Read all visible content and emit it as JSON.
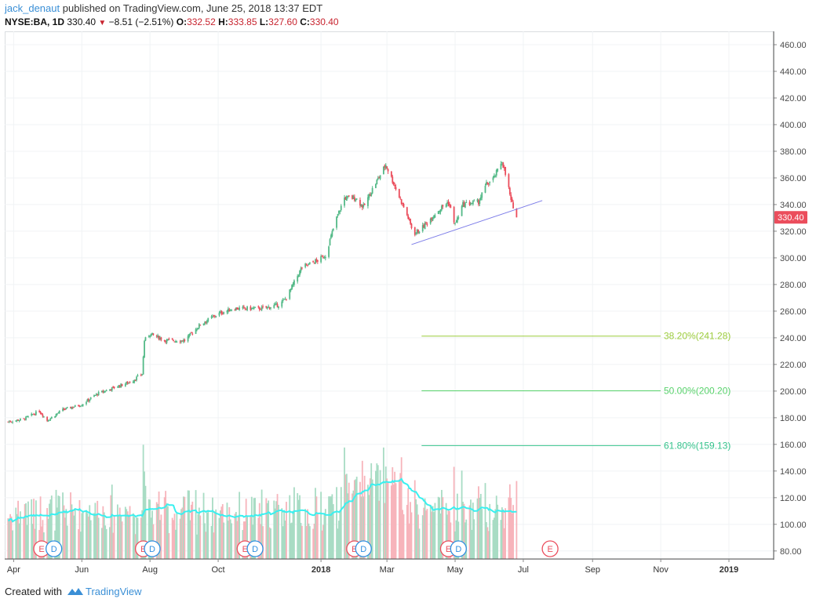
{
  "header": {
    "author": "jack_denaut",
    "published_text": " published on TradingView.com, June 25, 2018 13:37 EDT"
  },
  "ohlc": {
    "symbol": "NYSE:BA, 1D",
    "last": "330.40",
    "change": "−8.51 (−2.51%)",
    "o_label": "O:",
    "o": "332.52",
    "h_label": "H:",
    "h": "333.85",
    "l_label": "L:",
    "l": "327.60",
    "c_label": "C:",
    "c": "330.40"
  },
  "footer": {
    "created_with": "Created with",
    "brand": "TradingView"
  },
  "colors": {
    "up": "#53b987",
    "down": "#eb4d5c",
    "volume_up": "#a8dcc4",
    "volume_down": "#f7b4bb",
    "volume_ma": "#39f0f0",
    "trendline": "#7b7be8",
    "fib_382": "#9ccc3c",
    "fib_50": "#58d26b",
    "fib_618": "#35c38c",
    "price_tag": "#eb4d5c",
    "grid": "#f0f3f5"
  },
  "chart_data": {
    "type": "candlestick",
    "symbol": "NYSE:BA",
    "interval": "1D",
    "y_axis_ticks": [
      80,
      100,
      120,
      140,
      160,
      180,
      200,
      220,
      240,
      260,
      280,
      300,
      320,
      340,
      360,
      380,
      400,
      420,
      440,
      460
    ],
    "y_axis_labels": [
      "80.00",
      "100.00",
      "120.00",
      "140.00",
      "160.00",
      "180.00",
      "200.00",
      "220.00",
      "240.00",
      "260.00",
      "280.00",
      "300.00",
      "320.00",
      "340.00",
      "360.00",
      "380.00",
      "400.00",
      "420.00",
      "440.00",
      "460.00"
    ],
    "ylim": [
      74,
      470
    ],
    "x_axis_labels": [
      "Apr",
      "Jun",
      "Aug",
      "Oct",
      "2018",
      "Mar",
      "May",
      "Jul",
      "Sep",
      "Nov",
      "2019"
    ],
    "x_axis_bold": [
      "2018",
      "2019"
    ],
    "x_axis_dates": [
      "2017-04-01",
      "2017-06-01",
      "2017-08-01",
      "2017-10-01",
      "2018-01-01",
      "2018-03-01",
      "2018-05-01",
      "2018-07-01",
      "2018-09-01",
      "2018-11-01",
      "2019-01-01"
    ],
    "last_price_label": "330.40",
    "last_price": 330.4,
    "price_path": [
      [
        "2017-03-27",
        177
      ],
      [
        "2017-04-10",
        179
      ],
      [
        "2017-04-24",
        185
      ],
      [
        "2017-05-01",
        178
      ],
      [
        "2017-05-15",
        186
      ],
      [
        "2017-06-01",
        190
      ],
      [
        "2017-06-15",
        198
      ],
      [
        "2017-07-01",
        203
      ],
      [
        "2017-07-15",
        207
      ],
      [
        "2017-07-25",
        213
      ],
      [
        "2017-07-27",
        238
      ],
      [
        "2017-08-01",
        243
      ],
      [
        "2017-08-15",
        238
      ],
      [
        "2017-09-01",
        238
      ],
      [
        "2017-09-15",
        250
      ],
      [
        "2017-10-01",
        258
      ],
      [
        "2017-10-15",
        262
      ],
      [
        "2017-10-25",
        262
      ],
      [
        "2017-11-10",
        262
      ],
      [
        "2017-11-25",
        265
      ],
      [
        "2017-12-01",
        270
      ],
      [
        "2017-12-15",
        293
      ],
      [
        "2017-12-29",
        298
      ],
      [
        "2018-01-05",
        302
      ],
      [
        "2018-01-15",
        330
      ],
      [
        "2018-01-22",
        345
      ],
      [
        "2018-02-01",
        345
      ],
      [
        "2018-02-08",
        338
      ],
      [
        "2018-02-15",
        350
      ],
      [
        "2018-02-28",
        370
      ],
      [
        "2018-03-10",
        350
      ],
      [
        "2018-03-20",
        330
      ],
      [
        "2018-03-25",
        318
      ],
      [
        "2018-04-01",
        322
      ],
      [
        "2018-04-15",
        335
      ],
      [
        "2018-04-25",
        342
      ],
      [
        "2018-05-01",
        325
      ],
      [
        "2018-05-08",
        340
      ],
      [
        "2018-05-22",
        342
      ],
      [
        "2018-05-29",
        355
      ],
      [
        "2018-06-05",
        360
      ],
      [
        "2018-06-12",
        373
      ],
      [
        "2018-06-18",
        352
      ],
      [
        "2018-06-20",
        342
      ],
      [
        "2018-06-22",
        339
      ],
      [
        "2018-06-25",
        330.4
      ]
    ],
    "trendline": {
      "start": [
        "2018-03-23",
        310
      ],
      "end": [
        "2018-07-18",
        343
      ]
    },
    "fibonacci": [
      {
        "label": "38.20%(241.28)",
        "level": 241.28
      },
      {
        "label": "50.00%(200.20)",
        "level": 200.2
      },
      {
        "label": "61.80%(159.13)",
        "level": 159.13
      }
    ],
    "fib_start_date": "2018-04-01",
    "events": [
      {
        "type": "E",
        "date": "2017-04-26"
      },
      {
        "type": "D",
        "date": "2017-05-07"
      },
      {
        "type": "E",
        "date": "2017-07-26"
      },
      {
        "type": "D",
        "date": "2017-08-03"
      },
      {
        "type": "E",
        "date": "2017-10-25"
      },
      {
        "type": "D",
        "date": "2017-11-03"
      },
      {
        "type": "E",
        "date": "2018-01-31"
      },
      {
        "type": "D",
        "date": "2018-02-08"
      },
      {
        "type": "E",
        "date": "2018-04-25"
      },
      {
        "type": "D",
        "date": "2018-05-04"
      },
      {
        "type": "E",
        "date": "2018-07-25"
      }
    ]
  }
}
